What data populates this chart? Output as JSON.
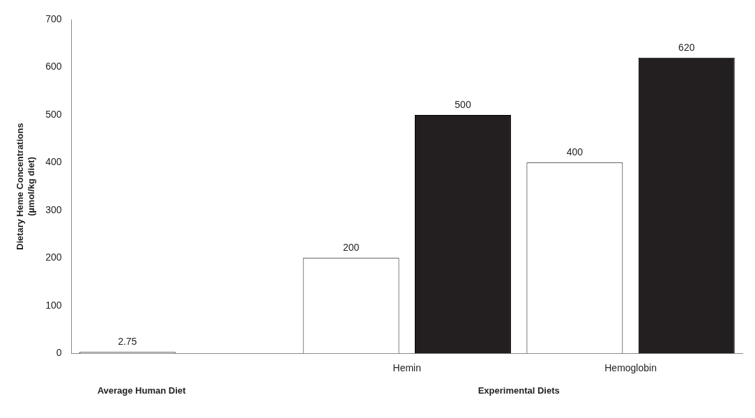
{
  "chart_data": {
    "type": "bar",
    "ylabel": "Dietary Heme Concentrations\n(µmol/kg diet)",
    "categories": [
      null,
      "Hemin",
      "Hemoglobin"
    ],
    "series": [
      {
        "color": "#ffffff",
        "values": [
          2.75,
          200,
          400
        ]
      },
      {
        "color": "#231f20",
        "values": [
          null,
          500,
          620
        ]
      }
    ],
    "ylim": [
      0,
      700
    ],
    "yticks": [
      0,
      100,
      200,
      300,
      400,
      500,
      600,
      700
    ],
    "grid": false,
    "legend": false,
    "data_labels": true,
    "annotations": [
      "Average Human Diet",
      "Experimental Diets"
    ]
  }
}
